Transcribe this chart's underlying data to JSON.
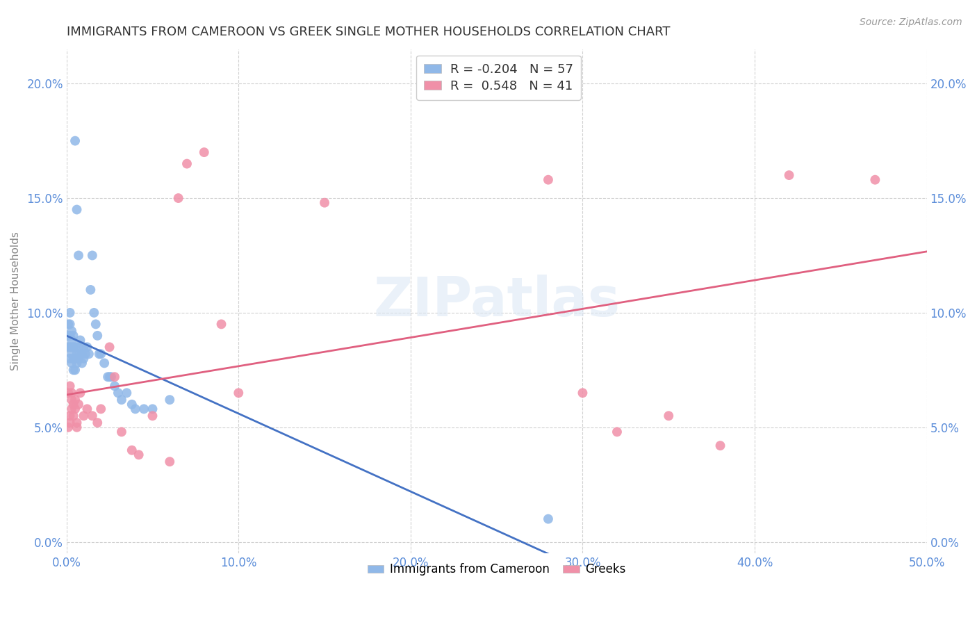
{
  "title": "IMMIGRANTS FROM CAMEROON VS GREEK SINGLE MOTHER HOUSEHOLDS CORRELATION CHART",
  "source": "Source: ZipAtlas.com",
  "xlim": [
    0.0,
    0.5
  ],
  "ylim": [
    -0.005,
    0.215
  ],
  "ylabel": "Single Mother Households",
  "legend_entries": [
    {
      "label_r": "R = -0.204",
      "label_n": "N = 57",
      "color": "#aec6f0"
    },
    {
      "label_r": "R =  0.548",
      "label_n": "N = 41",
      "color": "#f5b8c8"
    }
  ],
  "blue_scatter_x": [
    0.001,
    0.001,
    0.001,
    0.002,
    0.002,
    0.002,
    0.002,
    0.002,
    0.003,
    0.003,
    0.003,
    0.003,
    0.003,
    0.004,
    0.004,
    0.004,
    0.004,
    0.005,
    0.005,
    0.005,
    0.005,
    0.006,
    0.006,
    0.006,
    0.007,
    0.007,
    0.007,
    0.008,
    0.008,
    0.009,
    0.009,
    0.01,
    0.01,
    0.011,
    0.012,
    0.013,
    0.014,
    0.015,
    0.016,
    0.017,
    0.018,
    0.019,
    0.02,
    0.022,
    0.024,
    0.025,
    0.026,
    0.028,
    0.03,
    0.032,
    0.035,
    0.038,
    0.04,
    0.045,
    0.05,
    0.06,
    0.28
  ],
  "blue_scatter_y": [
    0.085,
    0.09,
    0.095,
    0.08,
    0.085,
    0.09,
    0.095,
    0.1,
    0.078,
    0.082,
    0.085,
    0.088,
    0.092,
    0.075,
    0.08,
    0.085,
    0.09,
    0.075,
    0.08,
    0.085,
    0.175,
    0.078,
    0.082,
    0.145,
    0.08,
    0.085,
    0.125,
    0.082,
    0.088,
    0.078,
    0.082,
    0.08,
    0.085,
    0.082,
    0.085,
    0.082,
    0.11,
    0.125,
    0.1,
    0.095,
    0.09,
    0.082,
    0.082,
    0.078,
    0.072,
    0.072,
    0.072,
    0.068,
    0.065,
    0.062,
    0.065,
    0.06,
    0.058,
    0.058,
    0.058,
    0.062,
    0.01
  ],
  "pink_scatter_x": [
    0.001,
    0.001,
    0.002,
    0.002,
    0.002,
    0.003,
    0.003,
    0.003,
    0.004,
    0.004,
    0.005,
    0.005,
    0.006,
    0.006,
    0.007,
    0.008,
    0.01,
    0.012,
    0.015,
    0.018,
    0.02,
    0.025,
    0.028,
    0.032,
    0.038,
    0.042,
    0.05,
    0.06,
    0.065,
    0.07,
    0.08,
    0.09,
    0.1,
    0.15,
    0.28,
    0.3,
    0.32,
    0.35,
    0.38,
    0.42,
    0.47
  ],
  "pink_scatter_y": [
    0.065,
    0.05,
    0.068,
    0.055,
    0.052,
    0.065,
    0.062,
    0.058,
    0.06,
    0.055,
    0.062,
    0.058,
    0.05,
    0.052,
    0.06,
    0.065,
    0.055,
    0.058,
    0.055,
    0.052,
    0.058,
    0.085,
    0.072,
    0.048,
    0.04,
    0.038,
    0.055,
    0.035,
    0.15,
    0.165,
    0.17,
    0.095,
    0.065,
    0.148,
    0.158,
    0.065,
    0.048,
    0.055,
    0.042,
    0.16,
    0.158
  ],
  "blue_color": "#90b8e8",
  "pink_color": "#f090a8",
  "blue_line_color": "#4472c4",
  "pink_line_color": "#e06080",
  "blue_dash_color": "#c0d8f0",
  "background_color": "#ffffff",
  "grid_color": "#cccccc",
  "title_fontsize": 13,
  "source_fontsize": 10,
  "tick_color": "#5b8dd9",
  "watermark": "ZIPatlas"
}
